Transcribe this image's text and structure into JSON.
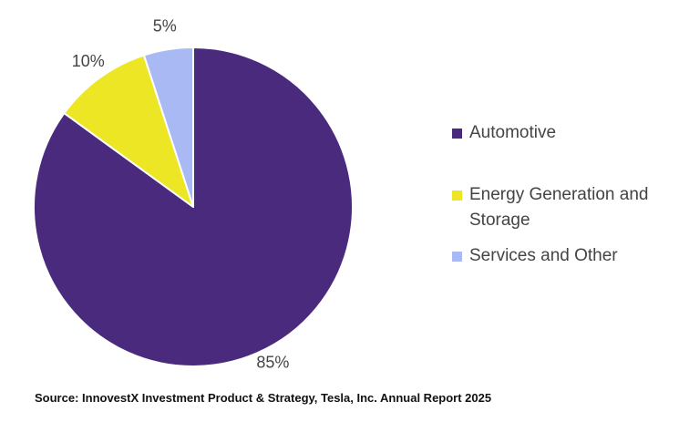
{
  "chart_data": {
    "type": "pie",
    "categories": [
      "Automotive",
      "Energy Generation and Storage",
      "Services and Other"
    ],
    "values": [
      85,
      10,
      5
    ],
    "labels": [
      "85%",
      "10%",
      "5%"
    ],
    "colors": [
      "#4a2a7d",
      "#ece624",
      "#a9b9f4"
    ],
    "start_angle_deg": 0,
    "direction": "clockwise",
    "legend_position": "right"
  },
  "legend": {
    "items": [
      {
        "label": "Automotive",
        "color": "#4a2a7d"
      },
      {
        "label": "Energy Generation and Storage",
        "color": "#ece624"
      },
      {
        "label": "Services and Other",
        "color": "#a9b9f4"
      }
    ]
  },
  "source": "Source: InnovestX Investment Product & Strategy, Tesla, Inc. Annual Report 2025"
}
